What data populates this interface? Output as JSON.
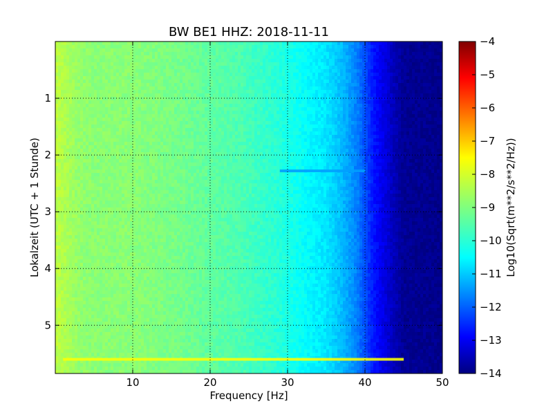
{
  "chart_data": {
    "type": "heatmap",
    "title": "BW BE1 HHZ: 2018-11-11",
    "xlabel": "Frequency [Hz]",
    "ylabel": "Lokalzeit (UTC + 1 Stunde)",
    "xlim": [
      0,
      50
    ],
    "ylim": [
      5.85,
      0
    ],
    "x_ticks": [
      10,
      20,
      30,
      40,
      50
    ],
    "x_tick_labels": [
      "10",
      "20",
      "30",
      "40",
      "50"
    ],
    "y_ticks": [
      1,
      2,
      3,
      4,
      5
    ],
    "y_tick_labels": [
      "1",
      "2",
      "3",
      "4",
      "5"
    ],
    "grid": true,
    "colormap": "jet",
    "colorbar": {
      "label": "Log10(Sqrt(m**2/s**2/Hz))",
      "range": [
        -14,
        -4
      ],
      "ticks": [
        -4,
        -5,
        -6,
        -7,
        -8,
        -9,
        -10,
        -11,
        -12,
        -13,
        -14
      ],
      "tick_labels": [
        "−4",
        "−5",
        "−6",
        "−7",
        "−8",
        "−9",
        "−10",
        "−11",
        "−12",
        "−13",
        "−14"
      ]
    },
    "spectrum_profile": {
      "frequency_hz": [
        0,
        1,
        3,
        5,
        8,
        10,
        13,
        16,
        20,
        24,
        28,
        30,
        32,
        35,
        37,
        39,
        41,
        43,
        45,
        50
      ],
      "log_amplitude": [
        -8.4,
        -8.5,
        -8.8,
        -8.9,
        -8.9,
        -8.9,
        -9.0,
        -9.1,
        -9.3,
        -9.5,
        -9.8,
        -10.0,
        -10.2,
        -10.5,
        -10.9,
        -11.5,
        -12.5,
        -13.2,
        -13.8,
        -13.9
      ]
    },
    "features": [
      {
        "time_h": 5.6,
        "freq_range": [
          1,
          45
        ],
        "level": -7.8
      },
      {
        "time_h": 2.28,
        "freq_range": [
          29,
          40
        ],
        "level": -11.2
      }
    ]
  }
}
